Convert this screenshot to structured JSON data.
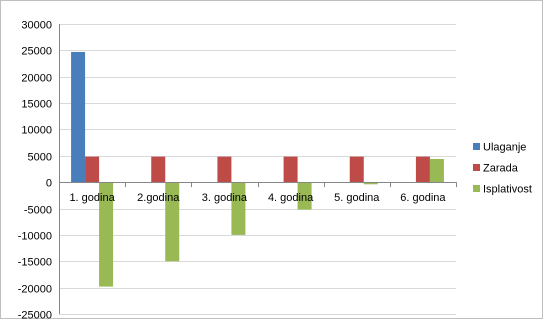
{
  "chart_data": {
    "type": "bar",
    "categories": [
      "1. godina",
      "2.godina",
      "3. godina",
      "4. godina",
      "5. godina",
      "6. godina"
    ],
    "series": [
      {
        "name": "Ulaganje",
        "color": "#4a7ebb",
        "values": [
          24700,
          0,
          0,
          0,
          0,
          0
        ]
      },
      {
        "name": "Zarada",
        "color": "#be4b48",
        "values": [
          4850,
          4850,
          4850,
          4850,
          4850,
          4850
        ]
      },
      {
        "name": "Isplativost",
        "color": "#98b954",
        "values": [
          -19800,
          -15000,
          -10000,
          -5200,
          -400,
          4400
        ]
      }
    ],
    "ylim": [
      -25000,
      30000
    ],
    "yticks": [
      30000,
      25000,
      20000,
      15000,
      10000,
      5000,
      0,
      -5000,
      -10000,
      -15000,
      -20000,
      -25000
    ],
    "grid": true,
    "legend_position": "right",
    "title": "",
    "xlabel": "",
    "ylabel": ""
  }
}
